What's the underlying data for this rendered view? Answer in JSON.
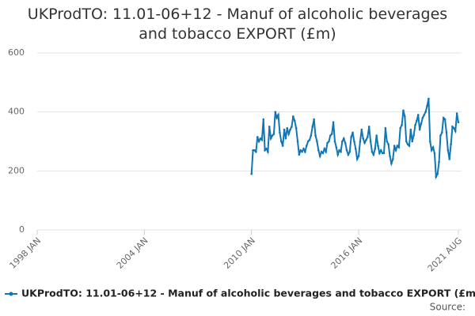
{
  "chart_data": {
    "type": "line",
    "title": "UKProdTO: 11.01-06+12 - Manuf of alcoholic beverages and tobacco EXPORT (£m)",
    "source": "Source:",
    "x": [
      "2010-01",
      "2010-02",
      "2010-03",
      "2010-04",
      "2010-05",
      "2010-06",
      "2010-07",
      "2010-08",
      "2010-09",
      "2010-10",
      "2010-11",
      "2010-12",
      "2011-01",
      "2011-02",
      "2011-03",
      "2011-04",
      "2011-05",
      "2011-06",
      "2011-07",
      "2011-08",
      "2011-09",
      "2011-10",
      "2011-11",
      "2011-12",
      "2012-01",
      "2012-02",
      "2012-03",
      "2012-04",
      "2012-05",
      "2012-06",
      "2012-07",
      "2012-08",
      "2012-09",
      "2012-10",
      "2012-11",
      "2012-12",
      "2013-01",
      "2013-02",
      "2013-03",
      "2013-04",
      "2013-05",
      "2013-06",
      "2013-07",
      "2013-08",
      "2013-09",
      "2013-10",
      "2013-11",
      "2013-12",
      "2014-01",
      "2014-02",
      "2014-03",
      "2014-04",
      "2014-05",
      "2014-06",
      "2014-07",
      "2014-08",
      "2014-09",
      "2014-10",
      "2014-11",
      "2014-12",
      "2015-01",
      "2015-02",
      "2015-03",
      "2015-04",
      "2015-05",
      "2015-06",
      "2015-07",
      "2015-08",
      "2015-09",
      "2015-10",
      "2015-11",
      "2015-12",
      "2016-01",
      "2016-02",
      "2016-03",
      "2016-04",
      "2016-05",
      "2016-06",
      "2016-07",
      "2016-08",
      "2016-09",
      "2016-10",
      "2016-11",
      "2016-12",
      "2017-01",
      "2017-02",
      "2017-03",
      "2017-04",
      "2017-05",
      "2017-06",
      "2017-07",
      "2017-08",
      "2017-09",
      "2017-10",
      "2017-11",
      "2017-12",
      "2018-01",
      "2018-02",
      "2018-03",
      "2018-04",
      "2018-05",
      "2018-06",
      "2018-07",
      "2018-08",
      "2018-09",
      "2018-10",
      "2018-11",
      "2018-12",
      "2019-01",
      "2019-02",
      "2019-03",
      "2019-04",
      "2019-05",
      "2019-06",
      "2019-07",
      "2019-08",
      "2019-09",
      "2019-10",
      "2019-11",
      "2019-12",
      "2020-01",
      "2020-02",
      "2020-03",
      "2020-04",
      "2020-05",
      "2020-06",
      "2020-07",
      "2020-08",
      "2020-09",
      "2020-10",
      "2020-11",
      "2020-12",
      "2021-01",
      "2021-02",
      "2021-03",
      "2021-04",
      "2021-05",
      "2021-06",
      "2021-07",
      "2021-08"
    ],
    "series": [
      {
        "name": "UKProdTO: 11.01-06+12 - Manuf of alcoholic beverages and tobacco EXPORT (£m)",
        "color": "#0f77b5",
        "values": [
          190,
          270,
          270,
          265,
          315,
          300,
          310,
          305,
          375,
          270,
          275,
          265,
          350,
          310,
          320,
          325,
          400,
          380,
          390,
          330,
          300,
          285,
          340,
          310,
          345,
          325,
          340,
          350,
          385,
          370,
          345,
          300,
          255,
          270,
          265,
          275,
          265,
          285,
          300,
          305,
          320,
          350,
          375,
          320,
          300,
          270,
          250,
          265,
          260,
          275,
          265,
          295,
          300,
          320,
          325,
          365,
          300,
          280,
          255,
          270,
          265,
          300,
          310,
          295,
          270,
          255,
          265,
          315,
          330,
          300,
          275,
          240,
          250,
          300,
          340,
          310,
          295,
          305,
          315,
          350,
          300,
          265,
          255,
          275,
          320,
          285,
          260,
          270,
          260,
          260,
          345,
          300,
          290,
          250,
          225,
          240,
          285,
          270,
          285,
          280,
          345,
          355,
          405,
          385,
          300,
          290,
          285,
          340,
          300,
          320,
          355,
          370,
          390,
          340,
          360,
          380,
          390,
          400,
          420,
          445,
          300,
          270,
          280,
          260,
          180,
          190,
          230,
          320,
          330,
          380,
          375,
          330,
          270,
          240,
          290,
          350,
          345,
          335,
          395,
          365
        ]
      }
    ],
    "xlim": [
      "1998-01",
      "2021-08"
    ],
    "xticks": [
      {
        "value": "1998-01",
        "label": "1998 JAN"
      },
      {
        "value": "2004-01",
        "label": "2004 JAN"
      },
      {
        "value": "2010-01",
        "label": "2010 JAN"
      },
      {
        "value": "2016-01",
        "label": "2016 JAN"
      },
      {
        "value": "2021-08",
        "label": "2021 AUG"
      }
    ],
    "ylim": [
      0,
      600
    ],
    "yticks": [
      0,
      200,
      400,
      600
    ],
    "grid": true,
    "legend": "bottom"
  }
}
